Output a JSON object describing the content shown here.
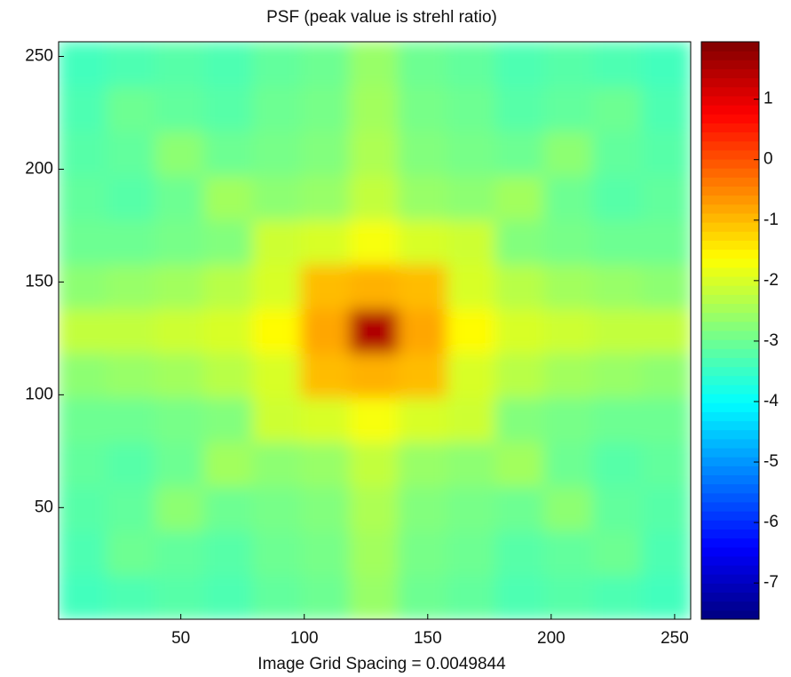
{
  "chart_data": {
    "type": "heatmap",
    "title": "PSF (peak value is strehl ratio)",
    "x_label": "Image Grid Spacing = 0.0049844",
    "xlim": [
      0.5,
      256.5
    ],
    "ylim": [
      0.5,
      256.5
    ],
    "xticks": [
      50,
      100,
      150,
      200,
      250
    ],
    "yticks": [
      50,
      100,
      150,
      200,
      250
    ],
    "colormap": "jet",
    "clim": [
      -7.6,
      1.95
    ],
    "cticks": [
      -7,
      -6,
      -5,
      -4,
      -3,
      -2,
      -1,
      0,
      1
    ],
    "z": [
      [
        -3.4,
        -3.3,
        -3.2,
        -3.3,
        -3.1,
        -3.0,
        -2.6,
        -3.0,
        -3.1,
        -3.3,
        -3.2,
        -3.3,
        -3.4
      ],
      [
        -3.3,
        -3.0,
        -3.1,
        -3.2,
        -3.0,
        -2.9,
        -2.5,
        -2.9,
        -3.0,
        -3.2,
        -3.1,
        -3.0,
        -3.3
      ],
      [
        -3.2,
        -3.1,
        -2.7,
        -3.0,
        -2.9,
        -2.8,
        -2.4,
        -2.8,
        -2.9,
        -3.0,
        -2.7,
        -3.1,
        -3.2
      ],
      [
        -3.1,
        -3.2,
        -3.0,
        -2.5,
        -2.7,
        -2.6,
        -2.2,
        -2.6,
        -2.7,
        -2.5,
        -3.0,
        -3.2,
        -3.1
      ],
      [
        -3.0,
        -3.0,
        -2.9,
        -2.8,
        -2.1,
        -2.0,
        -1.7,
        -2.0,
        -2.1,
        -2.8,
        -2.9,
        -3.0,
        -3.0
      ],
      [
        -2.7,
        -2.6,
        -2.5,
        -2.3,
        -2.0,
        -1.0,
        -0.9,
        -1.0,
        -2.0,
        -2.3,
        -2.5,
        -2.6,
        -2.7
      ],
      [
        -2.2,
        -2.2,
        -2.1,
        -2.0,
        -1.6,
        -0.8,
        1.5,
        -0.8,
        -1.6,
        -2.0,
        -2.1,
        -2.2,
        -2.2
      ],
      [
        -2.7,
        -2.6,
        -2.5,
        -2.3,
        -2.0,
        -1.0,
        -0.9,
        -1.0,
        -2.0,
        -2.3,
        -2.5,
        -2.6,
        -2.7
      ],
      [
        -3.0,
        -3.0,
        -2.9,
        -2.8,
        -2.1,
        -2.0,
        -1.7,
        -2.0,
        -2.1,
        -2.8,
        -2.9,
        -3.0,
        -3.0
      ],
      [
        -3.1,
        -3.2,
        -3.0,
        -2.5,
        -2.7,
        -2.6,
        -2.2,
        -2.6,
        -2.7,
        -2.5,
        -3.0,
        -3.2,
        -3.1
      ],
      [
        -3.2,
        -3.1,
        -2.7,
        -3.0,
        -2.9,
        -2.8,
        -2.4,
        -2.8,
        -2.9,
        -3.0,
        -2.7,
        -3.1,
        -3.2
      ],
      [
        -3.3,
        -3.0,
        -3.1,
        -3.2,
        -3.0,
        -2.9,
        -2.5,
        -2.9,
        -3.0,
        -3.2,
        -3.1,
        -3.0,
        -3.3
      ],
      [
        -3.4,
        -3.3,
        -3.2,
        -3.3,
        -3.1,
        -3.0,
        -2.6,
        -3.0,
        -3.1,
        -3.3,
        -3.2,
        -3.3,
        -3.4
      ]
    ]
  }
}
